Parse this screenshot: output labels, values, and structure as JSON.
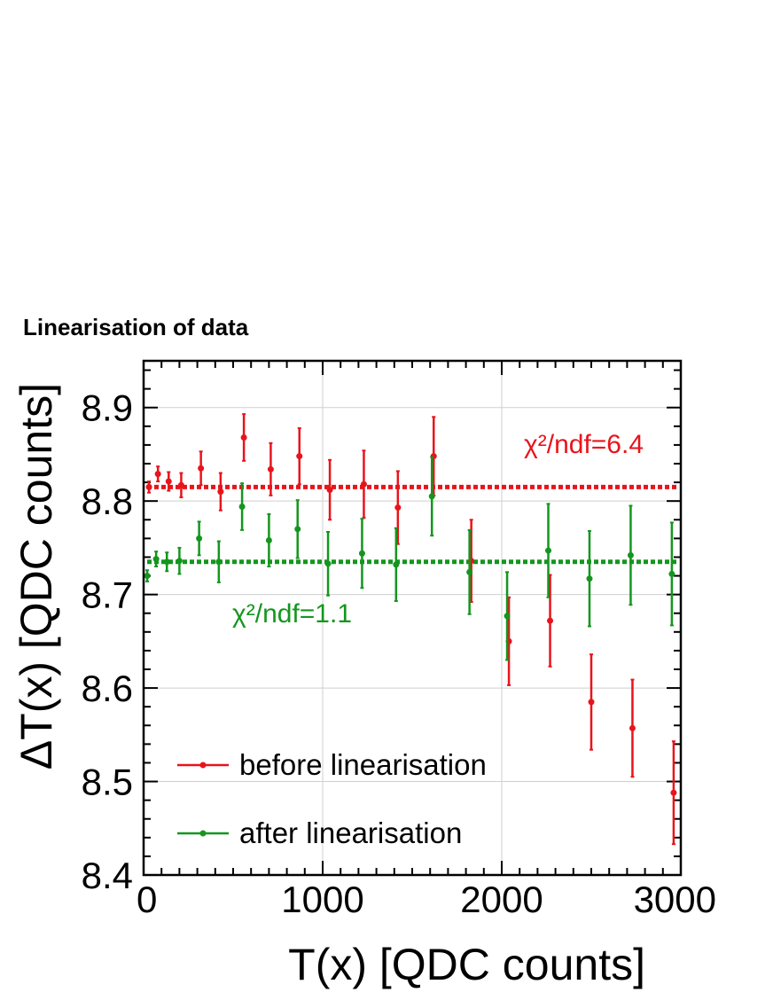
{
  "page_title": "Linearisation of data",
  "chart_data": {
    "type": "scatter",
    "title": "",
    "xlabel": "T(x) [QDC counts]",
    "ylabel": "ΔT(x) [QDC counts]",
    "xlim": [
      0,
      3000
    ],
    "ylim": [
      8.4,
      8.95
    ],
    "xticks": [
      0,
      1000,
      2000,
      3000
    ],
    "yticks": [
      8.4,
      8.5,
      8.6,
      8.7,
      8.8,
      8.9
    ],
    "xtick_labels": [
      "0",
      "1000",
      "2000",
      "3000"
    ],
    "ytick_labels": [
      "8.4",
      "8.5",
      "8.6",
      "8.7",
      "8.8",
      "8.9"
    ],
    "grid": true,
    "legend_position": "lower-left",
    "series": [
      {
        "name": "before linearisation",
        "color": "#e8141c",
        "x": [
          30,
          80,
          140,
          210,
          320,
          430,
          560,
          710,
          870,
          1040,
          1230,
          1420,
          1620,
          1830,
          2040,
          2270,
          2500,
          2730,
          2960
        ],
        "y": [
          8.815,
          8.829,
          8.821,
          8.817,
          8.835,
          8.81,
          8.868,
          8.834,
          8.848,
          8.812,
          8.818,
          8.793,
          8.848,
          8.736,
          8.65,
          8.672,
          8.585,
          8.557,
          8.488
        ],
        "err": [
          0.006,
          0.008,
          0.01,
          0.013,
          0.018,
          0.02,
          0.025,
          0.028,
          0.03,
          0.032,
          0.036,
          0.039,
          0.042,
          0.044,
          0.047,
          0.049,
          0.051,
          0.052,
          0.055
        ],
        "fit_value": 8.815,
        "fit_label": "χ²/ndf=6.4"
      },
      {
        "name": "after linearisation",
        "color": "#14961e",
        "x": [
          20,
          70,
          130,
          200,
          310,
          420,
          550,
          700,
          860,
          1030,
          1220,
          1410,
          1610,
          1820,
          2030,
          2260,
          2490,
          2720,
          2950
        ],
        "y": [
          8.72,
          8.738,
          8.735,
          8.736,
          8.76,
          8.735,
          8.794,
          8.758,
          8.77,
          8.733,
          8.744,
          8.732,
          8.805,
          8.724,
          8.677,
          8.747,
          8.717,
          8.742,
          8.722
        ],
        "err": [
          0.006,
          0.008,
          0.01,
          0.014,
          0.018,
          0.022,
          0.025,
          0.028,
          0.031,
          0.034,
          0.037,
          0.039,
          0.042,
          0.045,
          0.047,
          0.05,
          0.051,
          0.053,
          0.055
        ],
        "fit_value": 8.735,
        "fit_label": "χ²/ndf=1.1"
      }
    ]
  }
}
